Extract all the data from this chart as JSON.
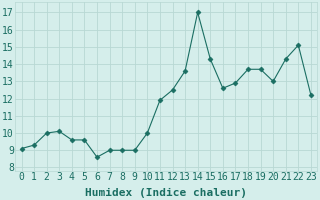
{
  "x": [
    0,
    1,
    2,
    3,
    4,
    5,
    6,
    7,
    8,
    9,
    10,
    11,
    12,
    13,
    14,
    15,
    16,
    17,
    18,
    19,
    20,
    21,
    22,
    23
  ],
  "y": [
    9.1,
    9.3,
    10.0,
    10.1,
    9.6,
    9.6,
    8.6,
    9.0,
    9.0,
    9.0,
    10.0,
    11.9,
    12.5,
    13.6,
    17.0,
    14.3,
    12.6,
    12.9,
    13.7,
    13.7,
    13.0,
    14.3,
    15.1,
    12.2
  ],
  "line_color": "#1a6e62",
  "marker": "D",
  "marker_size": 2.5,
  "bg_color": "#d5eeeb",
  "grid_color": "#b8d8d4",
  "xlabel": "Humidex (Indice chaleur)",
  "xlabel_fontsize": 8,
  "ylabel_ticks": [
    8,
    9,
    10,
    11,
    12,
    13,
    14,
    15,
    16,
    17
  ],
  "ylim": [
    7.8,
    17.6
  ],
  "xlim": [
    -0.5,
    23.5
  ],
  "xtick_labels": [
    "0",
    "1",
    "2",
    "3",
    "4",
    "5",
    "6",
    "7",
    "8",
    "9",
    "10",
    "11",
    "12",
    "13",
    "14",
    "15",
    "16",
    "17",
    "18",
    "19",
    "20",
    "21",
    "22",
    "23"
  ],
  "tick_color": "#1a6e62",
  "tick_fontsize": 7
}
